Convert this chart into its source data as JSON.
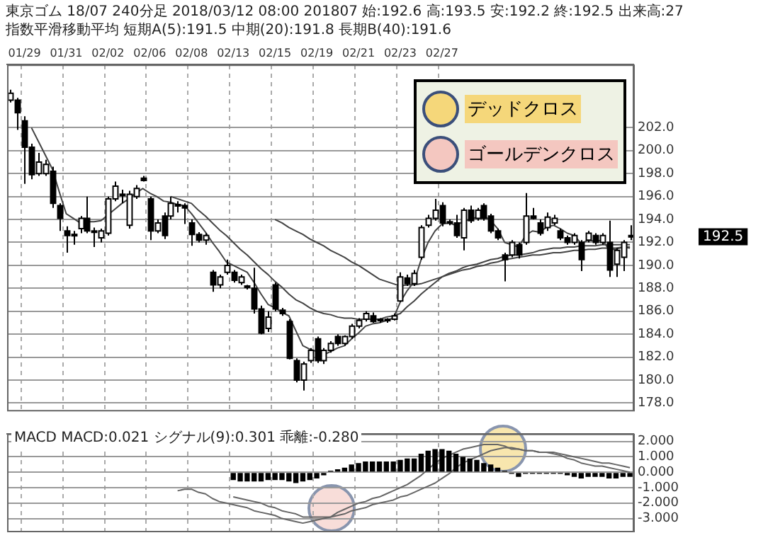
{
  "chart_data": [
    {
      "type": "candlestick",
      "title": "東京ゴム 18/07 240分足 2018/03/12 08:00 201807 始:192.6 高:193.5 安:192.2 終:192.5 出来高:27",
      "subtitle": "指数平滑移動平均 短期A(5):191.5 中期(20):191.8 長期B(40):191.6",
      "categories": [
        null,
        null,
        "01/29",
        null,
        null,
        null,
        null,
        null,
        "01/31",
        null,
        null,
        null,
        null,
        null,
        "02/02",
        null,
        null,
        null,
        null,
        null,
        "02/06",
        null,
        null,
        null,
        null,
        null,
        "02/08",
        null,
        null,
        null,
        null,
        null,
        "02/13",
        null,
        null,
        null,
        null,
        null,
        "02/15",
        null,
        null,
        null,
        null,
        null,
        "02/19",
        null,
        null,
        null,
        null,
        null,
        "02/21",
        null,
        null,
        null,
        null,
        null,
        "02/23",
        null,
        null,
        null,
        null,
        null,
        "02/27",
        null,
        null,
        null,
        null,
        null,
        null,
        null,
        null,
        null,
        null,
        null,
        null,
        null,
        null,
        null,
        null,
        null,
        null,
        null,
        null,
        null,
        null,
        null,
        null,
        null,
        null,
        null
      ],
      "colors": [
        "#ffffff",
        "#000000",
        "#000000",
        "#000000",
        "#ffffff",
        "#ffffff",
        "#000000",
        "#000000",
        "#000000",
        "#000000",
        "#ffffff",
        "#000000",
        "#000000",
        "#ffffff",
        "#ffffff",
        "#ffffff",
        "#000000",
        "#ffffff",
        "#ffffff",
        "#000000",
        "#000000",
        "#ffffff",
        "#000000",
        "#ffffff",
        "#ffffff",
        "#000000",
        "#000000",
        "#000000",
        "#ffffff",
        "#000000",
        "#ffffff",
        "#ffffff",
        "#000000",
        "#ffffff",
        "#000000",
        "#000000",
        "#000000",
        "#ffffff",
        "#000000",
        "#000000",
        "#000000",
        "#000000",
        "#ffffff",
        "#ffffff",
        "#000000",
        "#ffffff",
        "#ffffff",
        "#000000",
        "#ffffff",
        "#ffffff",
        "#ffffff",
        "#ffffff",
        "#000000",
        "#ffffff",
        "#000000",
        "#ffffff",
        "#ffffff",
        "#000000",
        "#ffffff",
        "#ffffff",
        "#ffffff",
        "#ffffff",
        "#000000",
        "#ffffff",
        "#000000",
        "#ffffff",
        "#000000",
        "#ffffff",
        "#000000",
        "#000000",
        "#000000",
        "#000000",
        "#ffffff",
        "#000000",
        "#ffffff",
        "#000000",
        "#000000",
        "#ffffff",
        "#ffffff",
        "#000000",
        "#000000",
        "#ffffff",
        "#000000",
        "#ffffff",
        "#000000",
        "#ffffff",
        "#000000",
        "#ffffff",
        "#ffffff",
        "#000000"
      ],
      "ohlc": [
        [
          204.4,
          205.3,
          204.2,
          205.0
        ],
        [
          204.4,
          204.6,
          201.8,
          203.3
        ],
        [
          202.6,
          203.0,
          197.1,
          200.3
        ],
        [
          200.3,
          200.6,
          197.5,
          197.9
        ],
        [
          198.0,
          199.8,
          197.8,
          199.0
        ],
        [
          198.0,
          199.2,
          197.8,
          198.8
        ],
        [
          198.2,
          198.6,
          195.0,
          195.4
        ],
        [
          195.2,
          195.4,
          193.0,
          194.1
        ],
        [
          193.0,
          193.4,
          191.1,
          192.6
        ],
        [
          192.7,
          193.0,
          191.8,
          192.6
        ],
        [
          193.2,
          194.3,
          192.8,
          194.1
        ],
        [
          194.1,
          196.0,
          192.8,
          193.0
        ],
        [
          193.0,
          193.3,
          191.6,
          192.9
        ],
        [
          192.4,
          193.2,
          192.0,
          193.0
        ],
        [
          192.8,
          196.0,
          192.6,
          195.8
        ],
        [
          195.8,
          197.3,
          195.6,
          196.9
        ],
        [
          196.2,
          196.6,
          195.4,
          196.1
        ],
        [
          193.5,
          196.5,
          193.2,
          196.2
        ],
        [
          196.0,
          197.0,
          195.8,
          196.7
        ],
        [
          197.6,
          197.8,
          197.3,
          197.4
        ],
        [
          195.8,
          196.0,
          192.2,
          193.0
        ],
        [
          193.0,
          194.0,
          192.8,
          193.7
        ],
        [
          194.3,
          194.6,
          192.3,
          192.6
        ],
        [
          194.3,
          196.0,
          194.0,
          195.4
        ],
        [
          195.2,
          195.6,
          194.6,
          195.3
        ],
        [
          195.2,
          195.4,
          193.6,
          195.0
        ],
        [
          193.7,
          194.0,
          191.7,
          192.7
        ],
        [
          192.7,
          192.9,
          192.0,
          192.2
        ],
        [
          192.2,
          192.8,
          191.8,
          192.6
        ],
        [
          189.4,
          189.6,
          187.7,
          188.3
        ],
        [
          188.3,
          189.2,
          188.0,
          189.0
        ],
        [
          189.4,
          190.5,
          189.2,
          190.0
        ],
        [
          189.4,
          189.6,
          188.5,
          188.7
        ],
        [
          188.5,
          189.2,
          188.3,
          189.0
        ],
        [
          188.2,
          188.3,
          187.9,
          188.1
        ],
        [
          188.0,
          189.8,
          185.8,
          186.2
        ],
        [
          186.2,
          186.5,
          184.0,
          184.1
        ],
        [
          184.5,
          186.0,
          184.2,
          185.5
        ],
        [
          188.3,
          188.5,
          186.0,
          186.2
        ],
        [
          186.1,
          186.3,
          185.6,
          185.8
        ],
        [
          185.1,
          185.3,
          181.8,
          181.9
        ],
        [
          181.7,
          181.9,
          179.8,
          180.0
        ],
        [
          180.0,
          181.6,
          179.1,
          181.4
        ],
        [
          181.7,
          182.8,
          181.5,
          182.6
        ],
        [
          183.6,
          183.8,
          181.5,
          181.7
        ],
        [
          181.7,
          182.8,
          181.4,
          182.6
        ],
        [
          182.6,
          183.4,
          182.4,
          183.2
        ],
        [
          183.8,
          184.0,
          183.0,
          183.2
        ],
        [
          183.2,
          183.9,
          183.0,
          183.8
        ],
        [
          183.8,
          184.9,
          183.6,
          184.7
        ],
        [
          184.7,
          185.4,
          184.5,
          185.2
        ],
        [
          185.3,
          186.0,
          185.1,
          185.8
        ],
        [
          185.6,
          185.9,
          185.0,
          185.1
        ],
        [
          185.2,
          185.4,
          185.0,
          185.3
        ],
        [
          185.3,
          185.4,
          185.0,
          185.2
        ],
        [
          185.3,
          185.8,
          185.2,
          185.6
        ],
        [
          186.9,
          189.4,
          186.8,
          189.0
        ],
        [
          188.9,
          189.2,
          188.2,
          188.4
        ],
        [
          188.4,
          189.6,
          188.2,
          189.3
        ],
        [
          190.7,
          193.5,
          190.5,
          193.3
        ],
        [
          193.5,
          194.4,
          193.3,
          194.1
        ],
        [
          194.1,
          195.8,
          193.9,
          194.8
        ],
        [
          195.2,
          195.5,
          193.4,
          193.7
        ],
        [
          193.7,
          194.0,
          193.5,
          193.8
        ],
        [
          193.7,
          194.4,
          192.4,
          192.6
        ],
        [
          192.4,
          195.0,
          191.3,
          194.8
        ],
        [
          194.8,
          195.2,
          193.7,
          193.9
        ],
        [
          194.1,
          195.0,
          193.9,
          194.8
        ],
        [
          195.2,
          195.4,
          193.9,
          194.1
        ],
        [
          194.3,
          194.5,
          192.8,
          193.0
        ],
        [
          193.0,
          193.2,
          192.2,
          192.4
        ],
        [
          190.9,
          191.1,
          188.6,
          190.5
        ],
        [
          190.9,
          192.2,
          190.7,
          192.0
        ],
        [
          191.8,
          192.0,
          190.6,
          190.9
        ],
        [
          192.0,
          196.3,
          191.8,
          194.3
        ],
        [
          194.3,
          195.0,
          194.0,
          194.1
        ],
        [
          193.7,
          194.0,
          192.6,
          192.8
        ],
        [
          193.3,
          194.6,
          193.0,
          194.2
        ],
        [
          193.7,
          194.4,
          193.5,
          194.1
        ],
        [
          193.0,
          193.2,
          192.2,
          192.4
        ],
        [
          192.4,
          192.6,
          191.8,
          192.0
        ],
        [
          192.0,
          192.8,
          191.8,
          192.6
        ],
        [
          192.0,
          192.2,
          189.5,
          190.5
        ],
        [
          192.2,
          193.0,
          192.0,
          192.8
        ],
        [
          192.6,
          192.8,
          191.8,
          192.0
        ],
        [
          192.0,
          192.8,
          191.8,
          192.6
        ],
        [
          192.0,
          193.9,
          189.0,
          189.6
        ],
        [
          190.1,
          191.5,
          189.0,
          191.3
        ],
        [
          190.7,
          192.2,
          189.5,
          192.0
        ],
        [
          192.6,
          193.5,
          192.2,
          192.5
        ]
      ],
      "series": [
        {
          "type": "line",
          "color": "#444444",
          "values": [
            null,
            null,
            null,
            202.0,
            200.8,
            199.6,
            198.4,
            196.4,
            194.5,
            194.1,
            193.7,
            193.8,
            193.8,
            193.9,
            194.4,
            194.9,
            195.4,
            195.8,
            196.3,
            196.7,
            196.3,
            196.0,
            195.6,
            195.5,
            195.3,
            195.2,
            194.5,
            193.7,
            192.9,
            192.0,
            191.2,
            190.3,
            190.0,
            189.7,
            189.4,
            188.5,
            187.5,
            186.6,
            186.3,
            185.9,
            185.6,
            184.3,
            183.0,
            182.7,
            182.5,
            182.2,
            182.5,
            182.8,
            183.0,
            183.6,
            184.1,
            184.7,
            184.9,
            185.0,
            185.2,
            185.4,
            186.8,
            187.8,
            188.6,
            190.5,
            192.0,
            193.0,
            193.6,
            193.7,
            193.5,
            193.8,
            194.0,
            194.2,
            194.3,
            193.9,
            193.2,
            192.0,
            191.8,
            191.6,
            192.6,
            193.0,
            192.9,
            193.3,
            193.5,
            193.2,
            192.8,
            192.6,
            191.9,
            192.2,
            192.1,
            192.2,
            191.4,
            191.4,
            191.6,
            191.5
          ]
        },
        {
          "type": "line",
          "color": "#444444",
          "values": [
            null,
            null,
            null,
            null,
            null,
            null,
            null,
            null,
            null,
            null,
            null,
            null,
            null,
            null,
            null,
            null,
            null,
            null,
            null,
            null,
            null,
            null,
            null,
            196.0,
            195.8,
            195.6,
            195.4,
            194.8,
            194.3,
            193.7,
            193.1,
            192.6,
            192.0,
            191.4,
            190.9,
            190.3,
            189.7,
            189.2,
            188.6,
            188.1,
            187.5,
            187.0,
            186.7,
            186.3,
            186.0,
            185.8,
            185.7,
            185.5,
            185.4,
            185.4,
            185.3,
            185.3,
            185.3,
            185.3,
            185.5,
            185.6,
            185.8,
            186.4,
            186.9,
            187.5,
            188.0,
            188.5,
            189.0,
            189.3,
            189.5,
            189.8,
            190.0,
            190.1,
            190.3,
            190.5,
            190.6,
            190.8,
            190.9,
            190.9,
            191.0,
            191.1,
            191.3,
            191.4,
            191.5,
            191.5,
            191.6,
            191.6,
            191.7,
            191.7,
            191.7,
            191.8,
            191.8,
            191.8,
            191.8,
            191.8
          ]
        },
        {
          "type": "line",
          "color": "#444444",
          "values": [
            null,
            null,
            null,
            null,
            null,
            null,
            null,
            null,
            null,
            null,
            null,
            null,
            null,
            null,
            null,
            null,
            null,
            null,
            null,
            null,
            null,
            null,
            null,
            null,
            null,
            null,
            null,
            null,
            null,
            null,
            null,
            null,
            null,
            null,
            null,
            null,
            null,
            null,
            194.0,
            193.7,
            193.3,
            193.0,
            192.7,
            192.3,
            192.0,
            191.7,
            191.3,
            191.0,
            190.7,
            190.3,
            190.0,
            189.6,
            189.2,
            188.8,
            188.6,
            188.4,
            188.2,
            188.3,
            188.3,
            188.4,
            188.6,
            188.8,
            189.0,
            189.2,
            189.4,
            189.6,
            189.7,
            189.9,
            190.0,
            190.2,
            190.3,
            190.5,
            190.6,
            190.7,
            190.8,
            190.9,
            190.9,
            191.0,
            191.1,
            191.1,
            191.2,
            191.3,
            191.3,
            191.4,
            191.4,
            191.5,
            191.5,
            191.5,
            191.6,
            191.6
          ]
        }
      ],
      "ylim": [
        177.4,
        207.5
      ],
      "yticks": [
        {
          "value": 178,
          "label": "178.0"
        },
        {
          "value": 180,
          "label": "180.0"
        },
        {
          "value": 182,
          "label": "182.0"
        },
        {
          "value": 184,
          "label": "184.0"
        },
        {
          "value": 186,
          "label": "186.0"
        },
        {
          "value": 188,
          "label": "188.0"
        },
        {
          "value": 190,
          "label": "190.0"
        },
        {
          "value": 192,
          "label": "192.0"
        },
        {
          "value": 194,
          "label": "194.0"
        },
        {
          "value": 196,
          "label": "196.0"
        },
        {
          "value": 198,
          "label": "198.0"
        },
        {
          "value": 200,
          "label": "200.0"
        },
        {
          "value": 202,
          "label": "202.0"
        }
      ],
      "grid": true,
      "annotations": [
        "192.5"
      ]
    },
    {
      "type": "bar",
      "title": "MACD MACD:0.021 シグナル(9):0.301 乖離:-0.280",
      "categories": [
        null,
        null,
        null,
        null,
        null,
        null,
        null,
        null,
        null,
        null,
        null,
        null,
        null,
        null,
        null,
        null,
        null,
        null,
        null,
        null,
        null,
        null,
        null,
        null,
        null,
        null,
        null,
        null,
        null,
        null,
        null,
        null,
        null,
        null,
        null,
        null,
        null,
        null,
        null,
        null,
        null,
        null,
        null,
        null,
        null,
        null,
        null,
        null,
        null,
        null,
        null,
        null,
        null,
        null,
        null,
        null,
        null,
        null,
        null,
        null,
        null,
        null,
        null,
        null,
        null,
        null,
        null,
        null,
        null,
        null,
        null,
        null,
        null,
        null,
        null,
        null,
        null,
        null,
        null,
        null,
        null,
        null,
        null,
        null,
        null,
        null,
        null,
        null,
        null,
        null
      ],
      "series": [
        {
          "type": "bar",
          "color": "#000000",
          "values": [
            null,
            null,
            null,
            null,
            null,
            null,
            null,
            null,
            null,
            null,
            null,
            null,
            null,
            null,
            null,
            null,
            null,
            null,
            null,
            null,
            null,
            null,
            null,
            null,
            null,
            null,
            null,
            null,
            null,
            null,
            null,
            null,
            -0.5,
            -0.6,
            -0.6,
            -0.6,
            -0.6,
            -0.5,
            -0.5,
            -0.5,
            -0.6,
            -0.7,
            -0.6,
            -0.5,
            -0.4,
            -0.2,
            0.1,
            0.2,
            0.3,
            0.5,
            0.6,
            0.7,
            0.7,
            0.7,
            0.7,
            0.7,
            0.8,
            0.9,
            0.9,
            1.2,
            1.4,
            1.5,
            1.5,
            1.4,
            1.2,
            1.0,
            0.9,
            0.8,
            0.6,
            0.5,
            0.3,
            0.1,
            -0.1,
            -0.3,
            -0.1,
            -0.1,
            -0.1,
            -0.1,
            -0.1,
            -0.1,
            -0.2,
            -0.3,
            -0.4,
            -0.3,
            -0.3,
            -0.3,
            -0.4,
            -0.4,
            -0.3,
            -0.3
          ]
        },
        {
          "type": "line",
          "color": "#666666",
          "values": [
            null,
            null,
            null,
            null,
            null,
            null,
            null,
            null,
            null,
            null,
            null,
            null,
            null,
            null,
            null,
            null,
            null,
            null,
            null,
            null,
            null,
            null,
            null,
            null,
            -1.2,
            -1.1,
            -1.1,
            -1.3,
            -1.4,
            -1.7,
            -1.9,
            -2.0,
            -2.1,
            -2.2,
            -2.3,
            -2.5,
            -2.6,
            -2.7,
            -2.8,
            -3.0,
            -3.1,
            -3.2,
            -3.3,
            -3.2,
            -3.1,
            -3.0,
            -2.9,
            -2.6,
            -2.4,
            -2.2,
            -2.0,
            -1.9,
            -1.7,
            -1.6,
            -1.4,
            -1.2,
            -1.0,
            -0.8,
            -0.5,
            -0.2,
            0.2,
            0.6,
            0.9,
            1.1,
            1.3,
            1.5,
            1.6,
            1.7,
            1.8,
            1.8,
            1.8,
            1.7,
            1.5,
            1.5,
            1.4,
            1.4,
            1.3,
            1.3,
            1.2,
            1.1,
            0.9,
            0.8,
            0.6,
            0.5,
            0.4,
            0.4,
            0.3,
            0.2,
            0.1,
            0.0
          ]
        },
        {
          "type": "line",
          "color": "#666666",
          "values": [
            null,
            null,
            null,
            null,
            null,
            null,
            null,
            null,
            null,
            null,
            null,
            null,
            null,
            null,
            null,
            null,
            null,
            null,
            null,
            null,
            null,
            null,
            null,
            null,
            null,
            null,
            null,
            null,
            null,
            null,
            null,
            null,
            -1.6,
            -1.7,
            -1.8,
            -1.9,
            -2.0,
            -2.2,
            -2.3,
            -2.5,
            -2.6,
            -2.7,
            -2.9,
            -2.9,
            -2.9,
            -2.9,
            -2.9,
            -2.8,
            -2.7,
            -2.5,
            -2.4,
            -2.3,
            -2.1,
            -2.0,
            -1.9,
            -1.8,
            -1.6,
            -1.5,
            -1.3,
            -1.1,
            -0.9,
            -0.7,
            -0.4,
            -0.1,
            0.3,
            0.6,
            0.8,
            1.0,
            1.2,
            1.4,
            1.5,
            1.6,
            1.6,
            1.5,
            1.4,
            1.4,
            1.3,
            1.3,
            1.3,
            1.2,
            1.1,
            1.0,
            0.9,
            0.8,
            0.7,
            0.6,
            0.6,
            0.5,
            0.4,
            0.3
          ]
        }
      ],
      "ylim": [
        -3.8,
        2.5
      ],
      "yticks": [
        {
          "value": 2,
          "label": "2.000"
        },
        {
          "value": 1,
          "label": "1.000"
        },
        {
          "value": 0,
          "label": "0.000"
        },
        {
          "value": -1,
          "label": "-1.000"
        },
        {
          "value": -2,
          "label": "-2.000"
        },
        {
          "value": -3,
          "label": "-3.000"
        }
      ],
      "grid": true,
      "tick_labels": "y",
      "annotations": [
        "デッドクロス",
        "ゴールデンクロス"
      ]
    }
  ]
}
